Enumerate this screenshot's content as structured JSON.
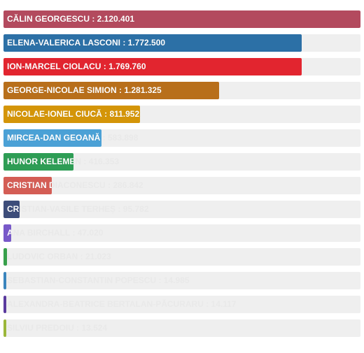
{
  "chart_data": {
    "type": "bar",
    "orientation": "horizontal",
    "max": 2120401,
    "rows": [
      {
        "label": "CĂLIN GEORGESCU : 2.120.401",
        "value": 2120401,
        "color": "#b34a5e"
      },
      {
        "label": "ELENA-VALERICA LASCONI : 1.772.500",
        "value": 1772500,
        "color": "#2c70a6"
      },
      {
        "label": "ION-MARCEL CIOLACU : 1.769.760",
        "value": 1769760,
        "color": "#e2252f"
      },
      {
        "label": "GEORGE-NICOLAE SIMION : 1.281.325",
        "value": 1281325,
        "color": "#b86f1b"
      },
      {
        "label": "NICOLAE-IONEL CIUCĂ : 811.952",
        "value": 811952,
        "color": "#d49508"
      },
      {
        "label": "MIRCEA-DAN GEOANĂ : 583.898",
        "value": 583898,
        "color": "#4ba1d6"
      },
      {
        "label": "HUNOR KELEMEN : 416.353",
        "value": 416353,
        "color": "#2e9d55"
      },
      {
        "label": "CRISTIAN DIACONESCU : 286.842",
        "value": 286842,
        "color": "#d45d55"
      },
      {
        "label": "CRISTIAN-VASILE TERHEȘ : 95.782",
        "value": 95782,
        "color": "#3d4d7a"
      },
      {
        "label": "ANA BIRCHALL : 47.020",
        "value": 47020,
        "color": "#7859c9"
      },
      {
        "label": "LUDOVIC ORBAN : 21.023",
        "value": 21023,
        "color": "#37a04b"
      },
      {
        "label": "SEBASTIAN-CONSTANTIN POPESCU : 14.985",
        "value": 14985,
        "color": "#3a85bd"
      },
      {
        "label": "ALEXANDRA-BEATRICE BERTALAN-PĂCURARU : 14.117",
        "value": 14117,
        "color": "#5a3a9e"
      },
      {
        "label": "SILVIU PREDOIU : 13.524",
        "value": 13524,
        "color": "#9bb73a"
      }
    ]
  }
}
